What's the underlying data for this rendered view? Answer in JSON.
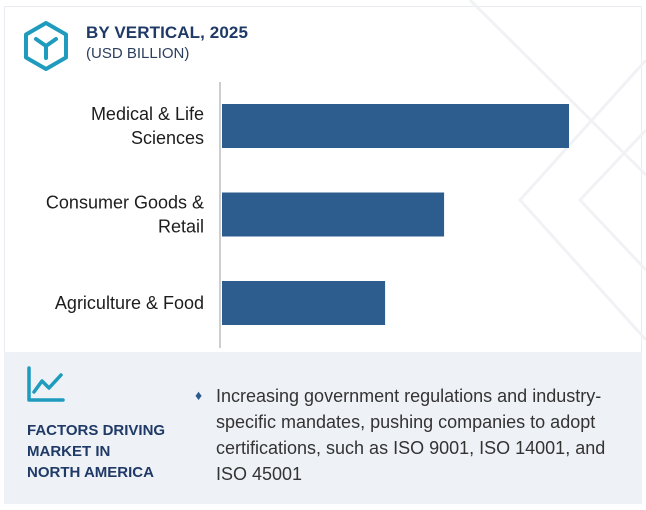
{
  "header": {
    "title": "BY VERTICAL, 2025",
    "subtitle": "(USD BILLION)"
  },
  "colors": {
    "bar": "#2d5c8e",
    "title": "#1f3a66",
    "panel_bg": "#eef1f6",
    "icon": "#1f9bbd"
  },
  "chart_data": {
    "type": "bar",
    "orientation": "horizontal",
    "categories": [
      [
        "Medical & Life",
        "Sciences"
      ],
      [
        "Consumer Goods &",
        "Retail"
      ],
      [
        "Agriculture & Food"
      ]
    ],
    "values": [
      100,
      64,
      47
    ],
    "title": "BY VERTICAL, 2025",
    "subtitle": "(USD BILLION)",
    "xlim": [
      0,
      100
    ],
    "grid": false,
    "legend": "none"
  },
  "factors": {
    "icon": "line-chart-icon",
    "heading_lines": [
      "FACTORS DRIVING",
      "MARKET IN",
      "NORTH AMERICA"
    ],
    "bullet": "Increasing government regulations and industry-specific mandates, pushing companies to adopt certifications, such as ISO 9001, ISO 14001, and ISO 45001"
  }
}
